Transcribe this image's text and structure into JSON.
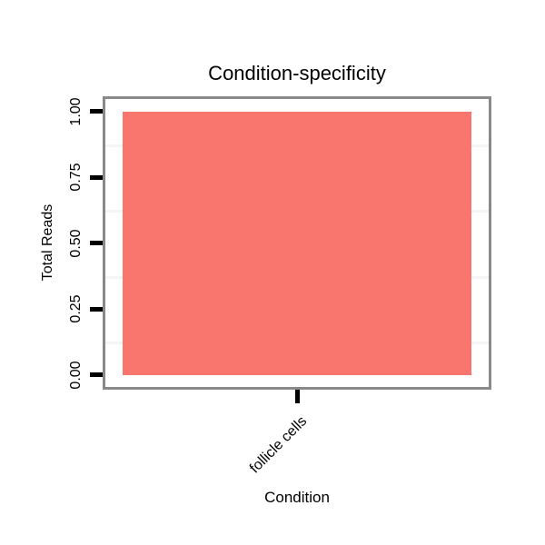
{
  "chart_data": {
    "type": "bar",
    "title": "Condition-specificity",
    "xlabel": "Condition",
    "ylabel": "Total Reads",
    "categories": [
      "follicle cells"
    ],
    "values": [
      1.0
    ],
    "ylim": [
      0,
      1.0
    ],
    "yticks": [
      "0.00",
      "0.25",
      "0.50",
      "0.75",
      "1.00"
    ],
    "minor_gridlines": [
      0.125,
      0.375,
      0.625,
      0.875
    ],
    "grid": "minor-horizontal-only",
    "legend": "none",
    "bar_color": "#F8766D",
    "panel_border_color": "#898989",
    "tick_color": "#000000",
    "gridline_color": "#f5f5f7",
    "background_color": "#ffffff"
  }
}
